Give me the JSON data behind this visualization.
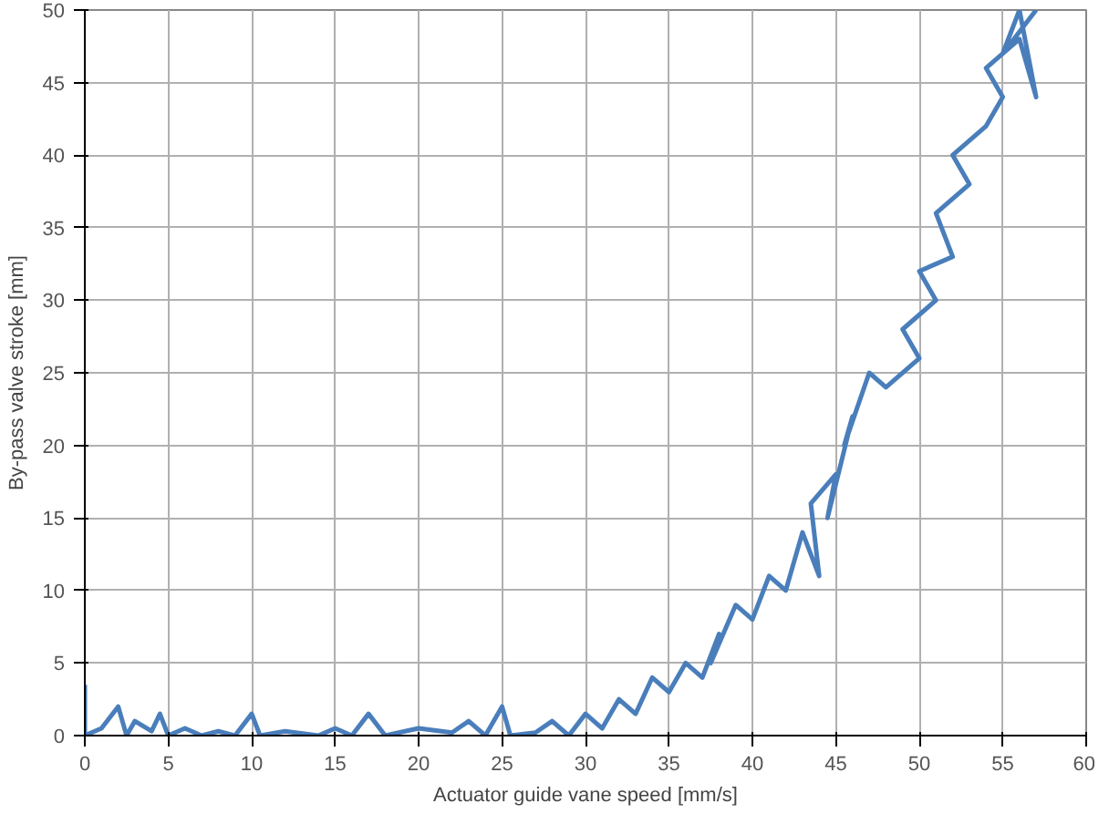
{
  "chart_data": {
    "type": "line",
    "xlabel": "Actuator guide vane speed [mm/s]",
    "ylabel": "By-pass valve stroke [mm]",
    "xlim": [
      0,
      60
    ],
    "ylim": [
      0,
      50
    ],
    "xticks": [
      0,
      5,
      10,
      15,
      20,
      25,
      30,
      35,
      40,
      45,
      50,
      55,
      60
    ],
    "yticks": [
      0,
      5,
      10,
      15,
      20,
      25,
      30,
      35,
      40,
      45,
      50
    ],
    "grid": true,
    "marker": "none",
    "line_style": "solid",
    "series": [
      {
        "color": "#4a7ebb",
        "x": [
          0,
          0,
          1,
          2,
          2.5,
          3,
          4,
          4.5,
          5,
          6,
          7,
          8,
          9,
          10,
          10.5,
          12,
          14,
          15,
          16,
          17,
          18,
          20,
          22,
          23,
          24,
          25,
          25.5,
          27,
          28,
          29,
          30,
          31,
          32,
          33,
          34,
          35,
          36,
          37,
          38,
          37.5,
          39,
          40,
          41,
          42,
          43,
          44,
          43.5,
          45,
          44.5,
          46,
          45.5,
          47,
          48,
          50,
          49,
          51,
          50,
          52,
          51,
          53,
          52,
          54,
          55,
          54,
          56,
          57,
          56,
          55,
          57
        ],
        "values": [
          3.5,
          0,
          0.5,
          2,
          0,
          1,
          0.3,
          1.5,
          0,
          0.5,
          0,
          0.3,
          0,
          1.5,
          0,
          0.3,
          0,
          0.5,
          0,
          1.5,
          0,
          0.5,
          0.2,
          1,
          0,
          2,
          0,
          0.2,
          1,
          0,
          1.5,
          0.5,
          2.5,
          1.5,
          4,
          3,
          5,
          4,
          7,
          5,
          9,
          8,
          11,
          10,
          14,
          11,
          16,
          18,
          15,
          22,
          20,
          25,
          24,
          26,
          28,
          30,
          32,
          33,
          36,
          38,
          40,
          42,
          44,
          46,
          48,
          44,
          50,
          47,
          50
        ]
      }
    ]
  }
}
